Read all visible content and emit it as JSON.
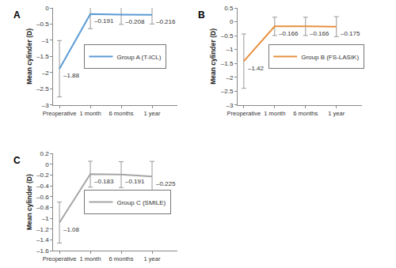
{
  "chart_data": [
    {
      "type": "line",
      "title": "A",
      "y_label": "Mean cylinder (D)",
      "categories": [
        "Preoperative",
        "1 month",
        "6 months",
        "1 year"
      ],
      "series": [
        {
          "name": "Group A (T-ICL)",
          "color": "#5b9bd5",
          "values": [
            -1.88,
            -0.191,
            -0.208,
            -0.216
          ],
          "value_labels": [
            "–1.88",
            "–0.191",
            "–0.208",
            "–0.216"
          ],
          "error": [
            0.87,
            0.45,
            0.3,
            0.28
          ]
        }
      ],
      "ylim": [
        -3,
        0
      ],
      "yticks": [
        {
          "value": -3,
          "label": "–3"
        },
        {
          "value": -2.5,
          "label": "–2.5"
        },
        {
          "value": -2,
          "label": "–2"
        },
        {
          "value": -1.5,
          "label": "–1.5"
        },
        {
          "value": -1,
          "label": "–1"
        },
        {
          "value": -0.5,
          "label": "–0.5"
        },
        0
      ],
      "grid": false,
      "legend": "right",
      "data_labels": true
    },
    {
      "type": "line",
      "title": "B",
      "y_label": "Mean cylinder (D)",
      "categories": [
        "Preoperative",
        "1 month",
        "6 months",
        "1 year"
      ],
      "series": [
        {
          "name": "Group B (FS-LASIK)",
          "color": "#e8913f",
          "values": [
            -1.42,
            -0.166,
            -0.166,
            -0.175
          ],
          "value_labels": [
            "–1.42",
            "–0.166",
            "–0.166",
            "–0.175"
          ],
          "error": [
            0.98,
            0.33,
            0.33,
            0.36
          ]
        }
      ],
      "ylim": [
        -3,
        0.5
      ],
      "yticks": [
        {
          "value": -3,
          "label": "–3"
        },
        {
          "value": -2.5,
          "label": "–2.5"
        },
        {
          "value": -2,
          "label": "–2"
        },
        {
          "value": -1.5,
          "label": "–1.5"
        },
        {
          "value": -1,
          "label": "–1"
        },
        {
          "value": -0.5,
          "label": "–0.5"
        },
        0,
        0.5
      ],
      "grid": false,
      "legend": "right",
      "data_labels": true
    },
    {
      "type": "line",
      "title": "C",
      "y_label": "Mean cylinder (D)",
      "categories": [
        "Preoperative",
        "1 month",
        "6 months",
        "1 year"
      ],
      "series": [
        {
          "name": "Group C (SMILE)",
          "color": "#a5a5a5",
          "values": [
            -1.08,
            -0.183,
            -0.191,
            -0.225
          ],
          "value_labels": [
            "–1.08",
            "–0.183",
            "–0.191",
            "–0.225"
          ],
          "error": [
            0.38,
            0.24,
            0.24,
            0.28
          ]
        }
      ],
      "ylim": [
        -1.6,
        0.2
      ],
      "yticks": [
        {
          "value": -1.6,
          "label": "–1.6"
        },
        {
          "value": -1.4,
          "label": "–1.4"
        },
        {
          "value": -1.2,
          "label": "–1.2"
        },
        {
          "value": -1,
          "label": "–1"
        },
        {
          "value": -0.8,
          "label": "–0.8"
        },
        {
          "value": -0.6,
          "label": "–0.6"
        },
        {
          "value": -0.4,
          "label": "–0.4"
        },
        {
          "value": -0.2,
          "label": "–0.2"
        },
        0,
        0.2
      ],
      "grid": false,
      "legend": "right",
      "data_labels": true
    }
  ]
}
